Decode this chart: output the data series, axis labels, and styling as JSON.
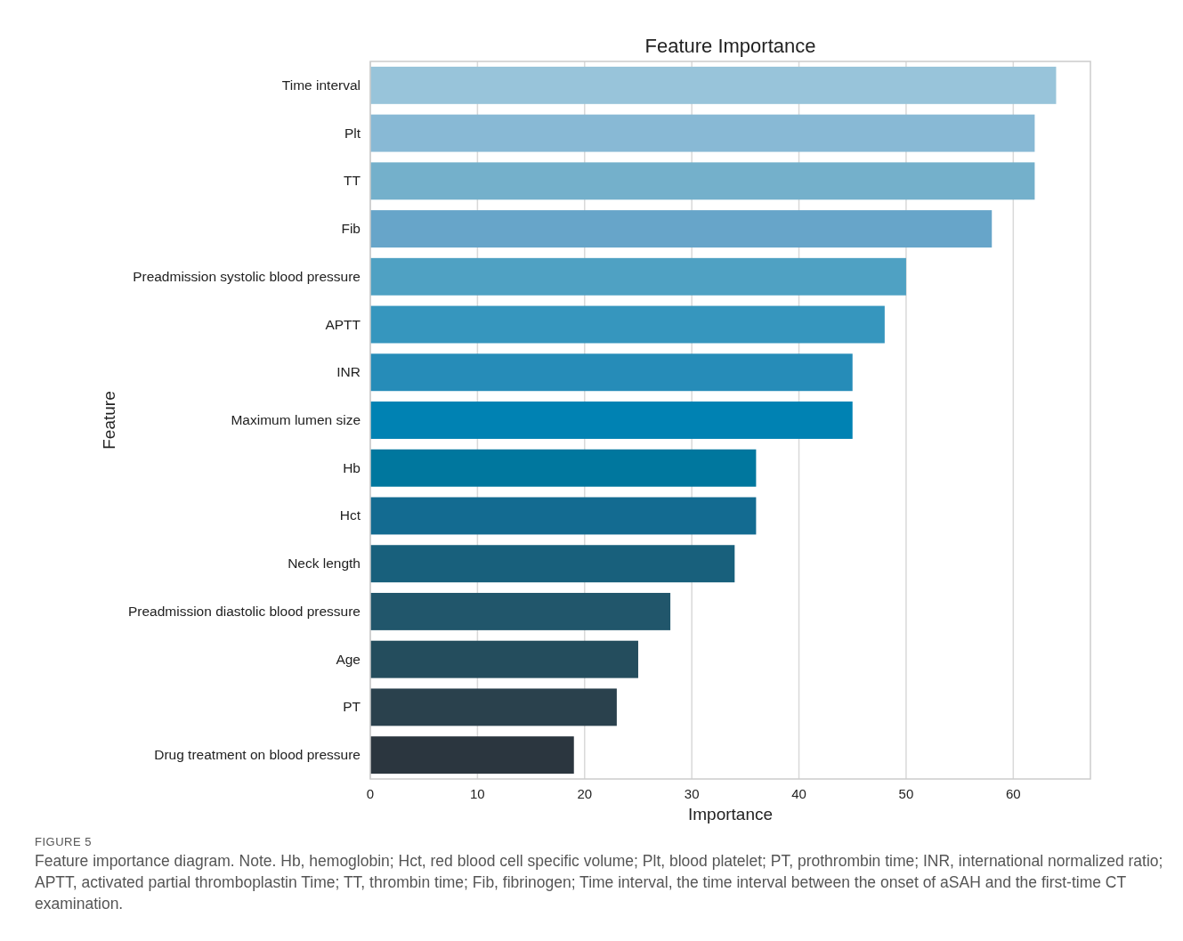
{
  "chart_data": {
    "type": "bar",
    "orientation": "horizontal",
    "title": "Feature Importance",
    "xlabel": "Importance",
    "ylabel": "Feature",
    "categories": [
      "Time interval",
      "Plt",
      "TT",
      "Fib",
      "Preadmission systolic blood pressure",
      "APTT",
      "INR",
      "Maximum lumen size",
      "Hb",
      "Hct",
      "Neck length",
      "Preadmission diastolic blood pressure",
      "Age",
      "PT",
      "Drug treatment on blood pressure"
    ],
    "values": [
      64,
      62,
      62,
      58,
      50,
      48,
      45,
      45,
      36,
      36,
      34,
      28,
      25,
      23,
      19
    ],
    "colors": [
      "#98c4da",
      "#88b9d5",
      "#74b0cb",
      "#67a5c9",
      "#4fa1c3",
      "#3696be",
      "#268cb8",
      "#0082b3",
      "#00779e",
      "#136b91",
      "#18607c",
      "#21566b",
      "#244d5d",
      "#2a414d",
      "#2b363f"
    ],
    "xlim": [
      0,
      67.2
    ],
    "xticks": [
      0,
      10,
      20,
      30,
      40,
      50,
      60
    ],
    "grid": "x",
    "annotations": [
      "FIGURE 5",
      "Feature importance diagram. Note. Hb, hemoglobin; Hct, red blood cell specific volume; Plt, blood platelet; PT, prothrombin time; INR, international normalized ratio; APTT, activated partial thromboplastin Time; TT, thrombin time; Fib, fibrinogen; Time interval, the time interval between the onset of aSAH and the first-time CT examination."
    ]
  }
}
